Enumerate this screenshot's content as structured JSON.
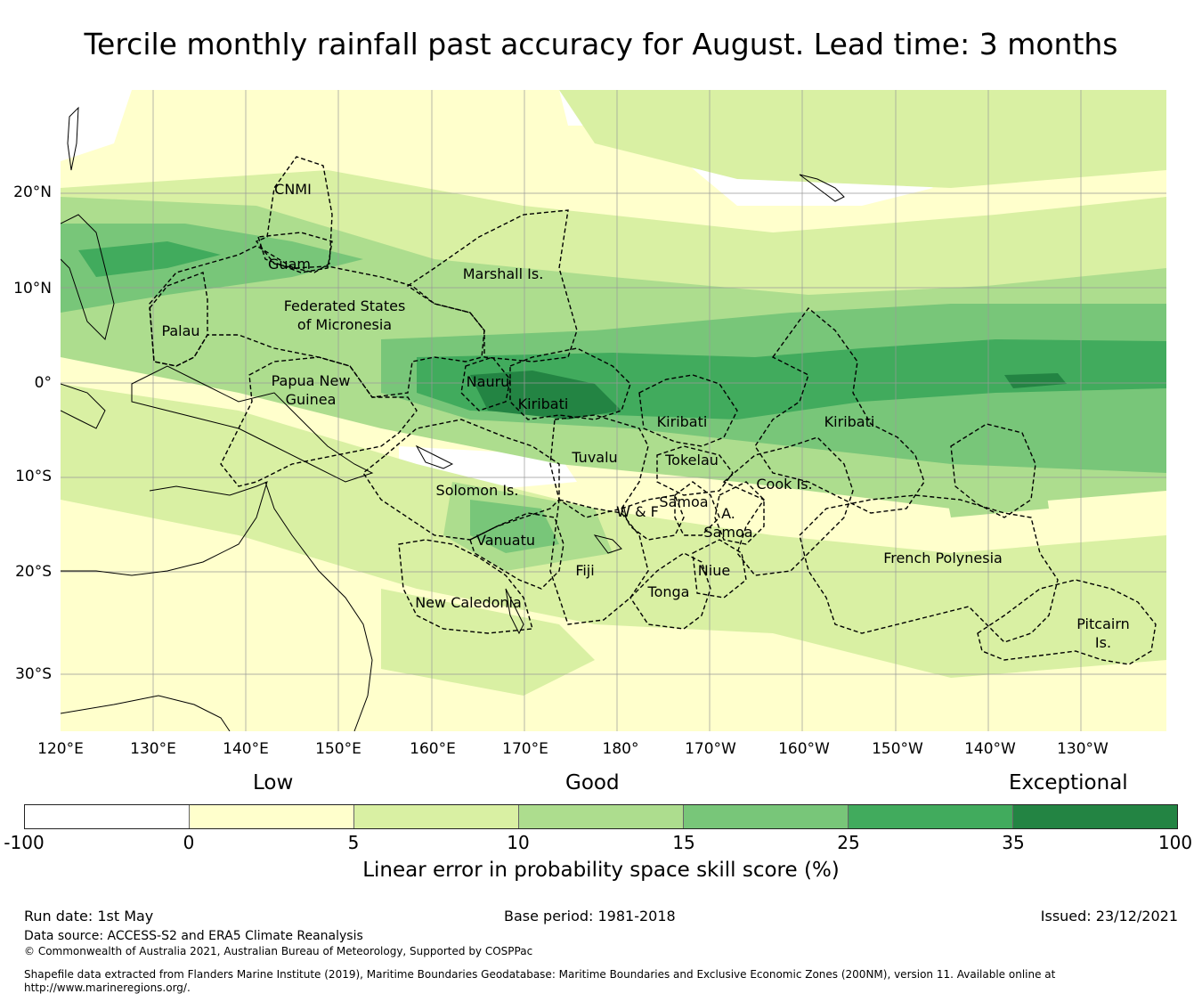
{
  "title": "Tercile monthly rainfall past accuracy for August. Lead time: 3 months",
  "map": {
    "lat_labels": [
      "20°N",
      "10°N",
      "0°",
      "10°S",
      "20°S",
      "30°S"
    ],
    "lon_labels": [
      "120°E",
      "130°E",
      "140°E",
      "150°E",
      "160°E",
      "170°E",
      "180°",
      "170°W",
      "160°W",
      "150°W",
      "140°W",
      "130°W"
    ],
    "regions": {
      "cnmi": "CNMI",
      "guam": "Guam",
      "marshall": "Marshall Is.",
      "fsm_1": "Federated States",
      "fsm_2": "of Micronesia",
      "palau": "Palau",
      "png_1": "Papua New",
      "png_2": "Guinea",
      "nauru": "Nauru",
      "kiribati_w": "Kiribati",
      "kiribati_c": "Kiribati",
      "kiribati_e": "Kiribati",
      "tuvalu": "Tuvalu",
      "tokelau": "Tokelau",
      "solomon": "Solomon Is.",
      "samoa": "Samoa",
      "wf": "W & F",
      "asamoa_1": "A.",
      "asamoa_2": "Samoa",
      "cook": "Cook Is.",
      "vanuatu": "Vanuatu",
      "fiji": "Fiji",
      "niue": "Niue",
      "tonga": "Tonga",
      "newcal": "New Caledonia",
      "frenchpoly": "French Polynesia",
      "pitcairn_1": "Pitcairn",
      "pitcairn_2": "Is."
    },
    "colors": {
      "neg": "#ffffff",
      "c0_5": "#ffffcc",
      "c5_10": "#d9f0a3",
      "c10_15": "#addd8e",
      "c15_25": "#78c679",
      "c25_35": "#41ab5d",
      "c35_100": "#238443"
    }
  },
  "colorbar": {
    "categories": {
      "low": "Low",
      "good": "Good",
      "exceptional": "Exceptional"
    },
    "ticks": [
      "-100",
      "0",
      "5",
      "10",
      "15",
      "25",
      "35",
      "100"
    ],
    "label": "Linear error in probability space skill score (%)",
    "colors": [
      "#ffffff",
      "#ffffcc",
      "#d9f0a3",
      "#addd8e",
      "#78c679",
      "#41ab5d",
      "#238443"
    ]
  },
  "footer": {
    "run_date": "Run date: 1st May",
    "base_period": "Base period: 1981-2018",
    "issued": "Issued: 23/12/2021",
    "data_source": "Data source: ACCESS-S2 and ERA5 Climate Reanalysis",
    "copyright": "© Commonwealth of Australia 2021, Australian Bureau of Meteorology, Supported by COSPPac",
    "shapefile_1": "Shapefile data extracted from Flanders Marine Institute (2019), Maritime Boundaries Geodatabase: Maritime Boundaries and Exclusive Economic Zones (200NM), version 11. Available online at",
    "shapefile_2": "http://www.marineregions.org/."
  }
}
